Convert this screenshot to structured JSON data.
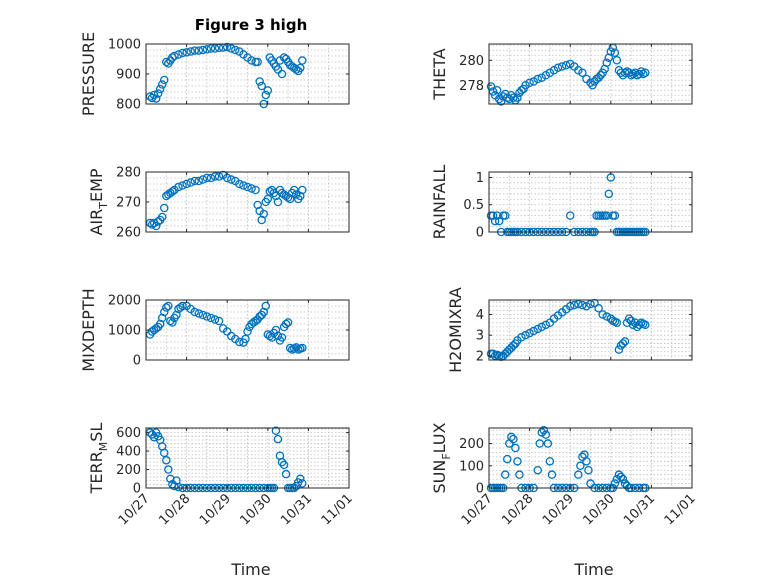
{
  "figure": {
    "title": "Figure 3 high",
    "xlabel": "Time",
    "marker_color": "#0072BD",
    "x_ticks": [
      "10/27",
      "10/28",
      "10/29",
      "10/30",
      "10/31",
      "11/01"
    ]
  },
  "chart_data": [
    {
      "type": "scatter",
      "ylabel": "PRESSURE",
      "ylim": [
        800,
        1000
      ],
      "yticks": [
        800,
        900,
        1000
      ],
      "grid": true,
      "xlim": [
        "10/27",
        "11/01"
      ],
      "x": [
        0.1,
        0.15,
        0.2,
        0.25,
        0.3,
        0.35,
        0.4,
        0.45,
        0.5,
        0.55,
        0.6,
        0.65,
        0.7,
        0.8,
        0.9,
        1.0,
        1.1,
        1.2,
        1.3,
        1.4,
        1.5,
        1.6,
        1.7,
        1.8,
        1.9,
        2.0,
        2.1,
        2.2,
        2.3,
        2.4,
        2.5,
        2.6,
        2.7,
        2.75,
        2.8,
        2.85,
        2.9,
        2.95,
        3.0,
        3.05,
        3.1,
        3.15,
        3.2,
        3.25,
        3.3,
        3.35,
        3.4,
        3.45,
        3.5,
        3.55,
        3.6,
        3.65,
        3.7,
        3.75,
        3.8,
        3.85
      ],
      "y": [
        825,
        820,
        830,
        818,
        835,
        850,
        865,
        880,
        940,
        935,
        945,
        955,
        960,
        965,
        970,
        972,
        975,
        978,
        978,
        980,
        982,
        985,
        985,
        987,
        988,
        990,
        985,
        980,
        975,
        965,
        955,
        945,
        940,
        940,
        875,
        860,
        800,
        830,
        845,
        955,
        945,
        935,
        925,
        915,
        945,
        900,
        955,
        950,
        940,
        930,
        925,
        920,
        915,
        910,
        920,
        945
      ]
    },
    {
      "type": "scatter",
      "ylabel": "THETA",
      "ylim": [
        276.5,
        281.3
      ],
      "yticks": [
        278,
        280
      ],
      "grid": true,
      "xlim": [
        "10/27",
        "11/01"
      ],
      "x": [
        0.05,
        0.1,
        0.15,
        0.2,
        0.25,
        0.3,
        0.35,
        0.4,
        0.45,
        0.5,
        0.55,
        0.6,
        0.65,
        0.7,
        0.75,
        0.8,
        0.85,
        0.9,
        1.0,
        1.1,
        1.2,
        1.3,
        1.4,
        1.5,
        1.6,
        1.7,
        1.8,
        1.9,
        2.0,
        2.1,
        2.2,
        2.3,
        2.4,
        2.5,
        2.55,
        2.6,
        2.65,
        2.7,
        2.75,
        2.8,
        2.85,
        2.9,
        2.95,
        3.0,
        3.05,
        3.1,
        3.15,
        3.2,
        3.25,
        3.3,
        3.35,
        3.4,
        3.45,
        3.5,
        3.55,
        3.6,
        3.65,
        3.7,
        3.75,
        3.8,
        3.85
      ],
      "y": [
        277.9,
        277.5,
        277.2,
        277.6,
        276.9,
        276.7,
        277.1,
        277.3,
        277.0,
        276.9,
        277.2,
        277.0,
        276.8,
        277.0,
        277.4,
        277.6,
        277.7,
        278.0,
        278.2,
        278.3,
        278.5,
        278.6,
        278.8,
        279.0,
        279.2,
        279.4,
        279.5,
        279.6,
        279.7,
        279.5,
        279.2,
        279.0,
        278.5,
        278.2,
        278.0,
        278.3,
        278.5,
        278.6,
        278.8,
        279.0,
        279.3,
        279.8,
        280.2,
        280.7,
        281.0,
        280.6,
        280.0,
        279.2,
        279.0,
        278.8,
        279.0,
        279.1,
        279.0,
        278.8,
        278.9,
        279.0,
        278.8,
        278.9,
        279.1,
        278.9,
        279.0
      ]
    },
    {
      "type": "scatter",
      "ylabel": "AIR_TEMP",
      "ylim": [
        260,
        280
      ],
      "yticks": [
        260,
        270,
        280
      ],
      "grid": true,
      "xlim": [
        "10/27",
        "11/01"
      ],
      "x": [
        0.1,
        0.15,
        0.2,
        0.25,
        0.3,
        0.35,
        0.4,
        0.45,
        0.5,
        0.55,
        0.6,
        0.65,
        0.7,
        0.8,
        0.9,
        1.0,
        1.1,
        1.2,
        1.3,
        1.4,
        1.5,
        1.6,
        1.7,
        1.8,
        1.9,
        2.0,
        2.1,
        2.2,
        2.3,
        2.4,
        2.5,
        2.6,
        2.7,
        2.75,
        2.8,
        2.85,
        2.9,
        2.95,
        3.0,
        3.05,
        3.1,
        3.15,
        3.2,
        3.25,
        3.3,
        3.35,
        3.4,
        3.45,
        3.5,
        3.55,
        3.6,
        3.65,
        3.7,
        3.75,
        3.8,
        3.85
      ],
      "y": [
        263,
        262.5,
        263,
        262,
        263.5,
        264,
        265,
        268,
        272,
        272.5,
        273,
        273.5,
        274,
        275,
        275.5,
        276,
        276.5,
        277,
        277,
        277.5,
        278,
        278,
        278.5,
        278.5,
        279,
        278,
        277.5,
        277,
        276,
        275.5,
        275,
        274.5,
        274,
        269,
        267,
        264,
        266,
        270,
        271,
        273.5,
        274,
        273,
        272,
        270,
        274,
        273,
        272.5,
        272,
        271.5,
        271,
        273,
        274,
        272.5,
        271,
        272,
        274
      ]
    },
    {
      "type": "scatter",
      "ylabel": "RAINFALL",
      "ylim": [
        0,
        1.1
      ],
      "yticks": [
        0,
        0.5,
        1
      ],
      "grid": true,
      "xlim": [
        "10/27",
        "11/01"
      ],
      "x": [
        0.05,
        0.1,
        0.15,
        0.2,
        0.25,
        0.3,
        0.35,
        0.4,
        0.45,
        0.5,
        0.55,
        0.6,
        0.65,
        0.7,
        0.8,
        0.9,
        1.0,
        1.1,
        1.2,
        1.3,
        1.4,
        1.5,
        1.6,
        1.7,
        1.8,
        1.9,
        2.0,
        2.1,
        2.2,
        2.3,
        2.4,
        2.5,
        2.55,
        2.6,
        2.65,
        2.7,
        2.75,
        2.8,
        2.85,
        2.9,
        2.95,
        3.0,
        3.05,
        3.1,
        3.15,
        3.2,
        3.25,
        3.3,
        3.35,
        3.4,
        3.45,
        3.5,
        3.55,
        3.6,
        3.65,
        3.7,
        3.75,
        3.8,
        3.85
      ],
      "y": [
        0.3,
        0.3,
        0.2,
        0.3,
        0.2,
        0,
        0.3,
        0.3,
        0,
        0,
        0,
        0,
        0,
        0,
        0,
        0,
        0,
        0,
        0,
        0,
        0,
        0,
        0,
        0,
        0,
        0,
        0.3,
        0,
        0,
        0,
        0,
        0,
        0,
        0,
        0.3,
        0.3,
        0.3,
        0.3,
        0.3,
        0.3,
        0.7,
        1.0,
        0.3,
        0.3,
        0,
        0,
        0,
        0,
        0,
        0,
        0,
        0,
        0,
        0,
        0,
        0,
        0,
        0,
        0
      ]
    },
    {
      "type": "scatter",
      "ylabel": "MIXDEPTH",
      "ylim": [
        0,
        2000
      ],
      "yticks": [
        0,
        1000,
        2000
      ],
      "grid": true,
      "xlim": [
        "10/27",
        "11/01"
      ],
      "x": [
        0.1,
        0.15,
        0.2,
        0.25,
        0.3,
        0.35,
        0.4,
        0.45,
        0.5,
        0.55,
        0.6,
        0.65,
        0.7,
        0.75,
        0.8,
        0.85,
        0.9,
        1.0,
        1.1,
        1.2,
        1.3,
        1.4,
        1.5,
        1.6,
        1.7,
        1.8,
        1.9,
        2.0,
        2.1,
        2.2,
        2.3,
        2.4,
        2.45,
        2.5,
        2.55,
        2.6,
        2.65,
        2.7,
        2.75,
        2.8,
        2.85,
        2.9,
        2.95,
        3.0,
        3.05,
        3.1,
        3.15,
        3.2,
        3.25,
        3.3,
        3.35,
        3.4,
        3.45,
        3.5,
        3.55,
        3.6,
        3.65,
        3.7,
        3.75,
        3.8,
        3.85
      ],
      "y": [
        850,
        950,
        1000,
        1050,
        1100,
        1200,
        1400,
        1600,
        1750,
        1800,
        1300,
        1250,
        1400,
        1500,
        1700,
        1750,
        1800,
        1800,
        1700,
        1600,
        1550,
        1500,
        1450,
        1400,
        1350,
        1300,
        1050,
        950,
        800,
        700,
        600,
        580,
        700,
        950,
        1100,
        1200,
        1250,
        1300,
        1350,
        1450,
        1500,
        1600,
        1800,
        850,
        800,
        750,
        900,
        1000,
        800,
        650,
        750,
        1100,
        1200,
        1250,
        400,
        350,
        380,
        420,
        350,
        380,
        400
      ]
    },
    {
      "type": "scatter",
      "ylabel": "H2OMIXRA",
      "ylim": [
        1.8,
        4.7
      ],
      "yticks": [
        2,
        3,
        4
      ],
      "grid": true,
      "xlim": [
        "10/27",
        "11/01"
      ],
      "x": [
        0.05,
        0.1,
        0.15,
        0.2,
        0.25,
        0.3,
        0.35,
        0.4,
        0.45,
        0.5,
        0.55,
        0.6,
        0.65,
        0.7,
        0.8,
        0.9,
        1.0,
        1.1,
        1.2,
        1.3,
        1.4,
        1.5,
        1.6,
        1.7,
        1.8,
        1.9,
        2.0,
        2.1,
        2.2,
        2.3,
        2.4,
        2.5,
        2.6,
        2.7,
        2.8,
        2.9,
        3.0,
        3.05,
        3.1,
        3.15,
        3.2,
        3.25,
        3.3,
        3.35,
        3.4,
        3.45,
        3.5,
        3.55,
        3.6,
        3.65,
        3.7,
        3.75,
        3.8,
        3.85
      ],
      "y": [
        2.1,
        2.1,
        2.0,
        2.05,
        2.0,
        1.95,
        2.0,
        2.1,
        2.2,
        2.3,
        2.4,
        2.5,
        2.6,
        2.75,
        2.9,
        3.0,
        3.1,
        3.2,
        3.3,
        3.4,
        3.5,
        3.6,
        3.8,
        3.95,
        4.1,
        4.25,
        4.4,
        4.45,
        4.5,
        4.45,
        4.4,
        4.5,
        4.55,
        4.3,
        4.0,
        3.9,
        3.8,
        3.7,
        3.65,
        3.6,
        2.3,
        2.5,
        2.6,
        2.7,
        3.6,
        3.8,
        3.7,
        3.5,
        3.6,
        3.4,
        3.5,
        3.6,
        3.55,
        3.5
      ]
    },
    {
      "type": "scatter",
      "ylabel": "TERR_MSL",
      "ylim": [
        0,
        650
      ],
      "yticks": [
        0,
        200,
        400,
        600
      ],
      "grid": true,
      "xlim": [
        "10/27",
        "11/01"
      ],
      "x": [
        0.1,
        0.15,
        0.2,
        0.25,
        0.3,
        0.35,
        0.4,
        0.45,
        0.5,
        0.55,
        0.6,
        0.65,
        0.7,
        0.75,
        0.8,
        0.9,
        1.0,
        1.1,
        1.2,
        1.3,
        1.4,
        1.5,
        1.6,
        1.7,
        1.8,
        1.9,
        2.0,
        2.1,
        2.2,
        2.3,
        2.4,
        2.5,
        2.6,
        2.7,
        2.8,
        2.9,
        3.0,
        3.05,
        3.1,
        3.15,
        3.2,
        3.25,
        3.3,
        3.35,
        3.4,
        3.45,
        3.5,
        3.55,
        3.6,
        3.65,
        3.7,
        3.75,
        3.8,
        3.85
      ],
      "y": [
        600,
        580,
        550,
        600,
        560,
        520,
        450,
        380,
        300,
        200,
        100,
        40,
        20,
        80,
        10,
        0,
        0,
        0,
        0,
        0,
        0,
        0,
        0,
        0,
        0,
        0,
        0,
        0,
        0,
        0,
        0,
        0,
        0,
        0,
        0,
        0,
        0,
        0,
        0,
        0,
        620,
        530,
        350,
        280,
        250,
        150,
        0,
        0,
        0,
        0,
        20,
        60,
        100,
        50
      ]
    },
    {
      "type": "scatter",
      "ylabel": "SUN_FLUX",
      "ylim": [
        0,
        270
      ],
      "yticks": [
        0,
        100,
        200
      ],
      "grid": true,
      "xlim": [
        "10/27",
        "11/01"
      ],
      "x": [
        0.05,
        0.1,
        0.15,
        0.2,
        0.25,
        0.3,
        0.35,
        0.4,
        0.45,
        0.5,
        0.55,
        0.6,
        0.65,
        0.7,
        0.75,
        0.8,
        0.9,
        1.0,
        1.1,
        1.2,
        1.25,
        1.3,
        1.35,
        1.4,
        1.45,
        1.5,
        1.55,
        1.6,
        1.7,
        1.8,
        1.9,
        2.0,
        2.1,
        2.2,
        2.25,
        2.3,
        2.35,
        2.4,
        2.45,
        2.5,
        2.6,
        2.7,
        2.8,
        2.9,
        3.0,
        3.05,
        3.1,
        3.15,
        3.2,
        3.25,
        3.3,
        3.35,
        3.4,
        3.45,
        3.5,
        3.6,
        3.7,
        3.8,
        3.85
      ],
      "y": [
        0,
        0,
        0,
        0,
        0,
        0,
        0,
        60,
        130,
        200,
        230,
        220,
        180,
        120,
        60,
        0,
        0,
        0,
        0,
        80,
        200,
        250,
        260,
        240,
        200,
        120,
        60,
        0,
        0,
        0,
        0,
        0,
        0,
        60,
        100,
        140,
        150,
        120,
        80,
        20,
        0,
        0,
        0,
        0,
        0,
        0,
        20,
        40,
        60,
        50,
        40,
        20,
        10,
        0,
        0,
        0,
        0,
        0,
        0
      ]
    }
  ]
}
